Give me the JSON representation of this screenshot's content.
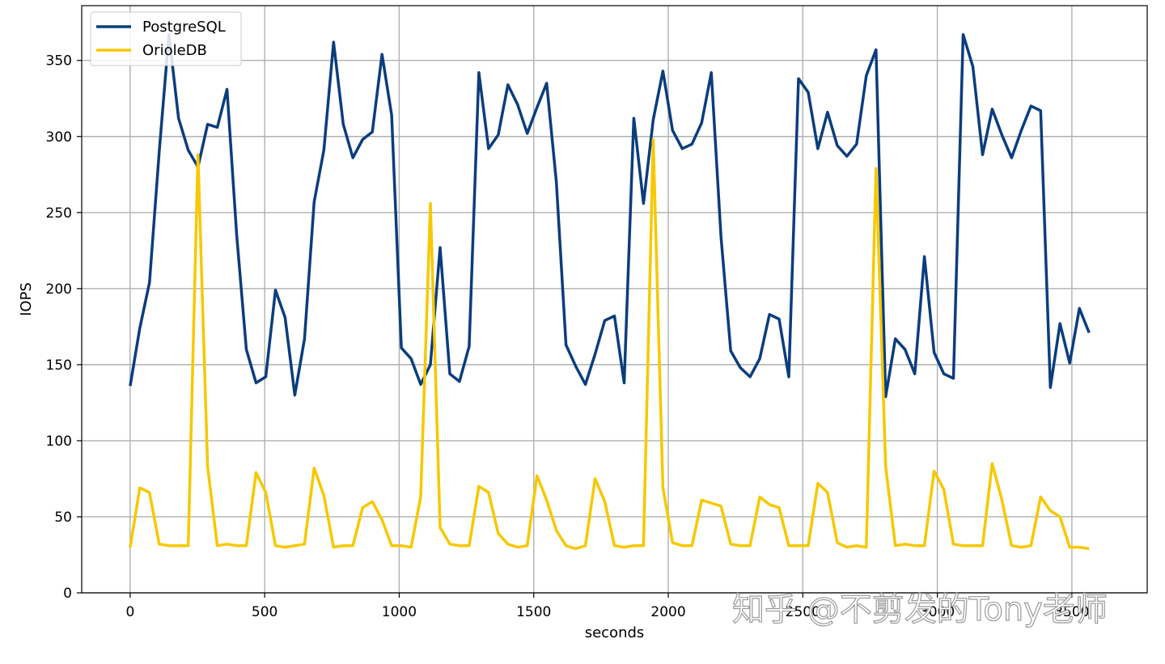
{
  "chart_data": {
    "type": "line",
    "xlabel": "seconds",
    "ylabel": "IOPS",
    "xlim": [
      -180,
      3780
    ],
    "ylim": [
      0,
      386
    ],
    "xticks": [
      0,
      500,
      1000,
      1500,
      2000,
      2500,
      3000,
      3500
    ],
    "xtick_labels": [
      "0",
      "500",
      "1000",
      "1500",
      "2000",
      "2500",
      "3000",
      "3500"
    ],
    "yticks": [
      0,
      50,
      100,
      150,
      200,
      250,
      300,
      350
    ],
    "ytick_labels": [
      "0",
      "50",
      "100",
      "150",
      "200",
      "250",
      "300",
      "350"
    ],
    "grid": true,
    "legend_position": "top-left",
    "x": [
      0,
      36,
      72,
      108,
      144,
      180,
      216,
      252,
      288,
      324,
      360,
      396,
      432,
      468,
      504,
      540,
      576,
      612,
      648,
      684,
      720,
      756,
      792,
      828,
      864,
      900,
      936,
      972,
      1008,
      1044,
      1080,
      1116,
      1152,
      1188,
      1224,
      1260,
      1296,
      1332,
      1368,
      1404,
      1440,
      1476,
      1512,
      1548,
      1584,
      1620,
      1656,
      1692,
      1728,
      1764,
      1800,
      1836,
      1872,
      1908,
      1944,
      1980,
      2016,
      2052,
      2088,
      2124,
      2160,
      2196,
      2232,
      2268,
      2304,
      2340,
      2376,
      2412,
      2448,
      2484,
      2520,
      2556,
      2592,
      2628,
      2664,
      2700,
      2736,
      2772,
      2808,
      2844,
      2880,
      2916,
      2952,
      2988,
      3024,
      3060,
      3096,
      3132,
      3168,
      3204,
      3240,
      3276,
      3312,
      3348,
      3384,
      3420,
      3456,
      3492,
      3528,
      3564
    ],
    "series": [
      {
        "name": "PostgreSQL",
        "color": "#0b3d7e",
        "values": [
          136,
          174,
          204,
          290,
          367,
          312,
          291,
          280,
          308,
          306,
          331,
          235,
          160,
          138,
          142,
          199,
          181,
          130,
          167,
          257,
          291,
          362,
          308,
          286,
          298,
          303,
          354,
          314,
          161,
          154,
          137,
          150,
          227,
          144,
          139,
          162,
          342,
          292,
          301,
          334,
          321,
          302,
          319,
          335,
          270,
          163,
          149,
          137,
          157,
          179,
          182,
          138,
          312,
          256,
          311,
          343,
          304,
          292,
          295,
          309,
          342,
          234,
          159,
          148,
          142,
          154,
          183,
          180,
          142,
          338,
          329,
          292,
          316,
          294,
          287,
          295,
          340,
          357,
          129,
          167,
          160,
          144,
          221,
          158,
          144,
          141,
          367,
          346,
          288,
          318,
          301,
          286,
          304,
          320,
          317,
          135,
          177,
          151,
          187,
          171
        ]
      },
      {
        "name": "OrioleDB",
        "color": "#f7c800",
        "values": [
          30,
          69,
          66,
          32,
          31,
          31,
          31,
          288,
          83,
          31,
          32,
          31,
          31,
          79,
          66,
          31,
          30,
          31,
          32,
          82,
          64,
          30,
          31,
          31,
          56,
          60,
          48,
          31,
          31,
          30,
          63,
          256,
          43,
          32,
          31,
          31,
          70,
          66,
          39,
          32,
          30,
          31,
          77,
          61,
          41,
          31,
          29,
          31,
          75,
          60,
          31,
          30,
          31,
          31,
          298,
          69,
          33,
          31,
          31,
          61,
          59,
          57,
          32,
          31,
          31,
          63,
          58,
          56,
          31,
          31,
          31,
          72,
          66,
          33,
          30,
          31,
          30,
          279,
          83,
          31,
          32,
          31,
          31,
          80,
          68,
          32,
          31,
          31,
          31,
          85,
          61,
          31,
          30,
          31,
          63,
          54,
          50,
          30,
          30,
          29
        ]
      }
    ]
  },
  "watermark": "知乎 @不剪发的Tony老师"
}
